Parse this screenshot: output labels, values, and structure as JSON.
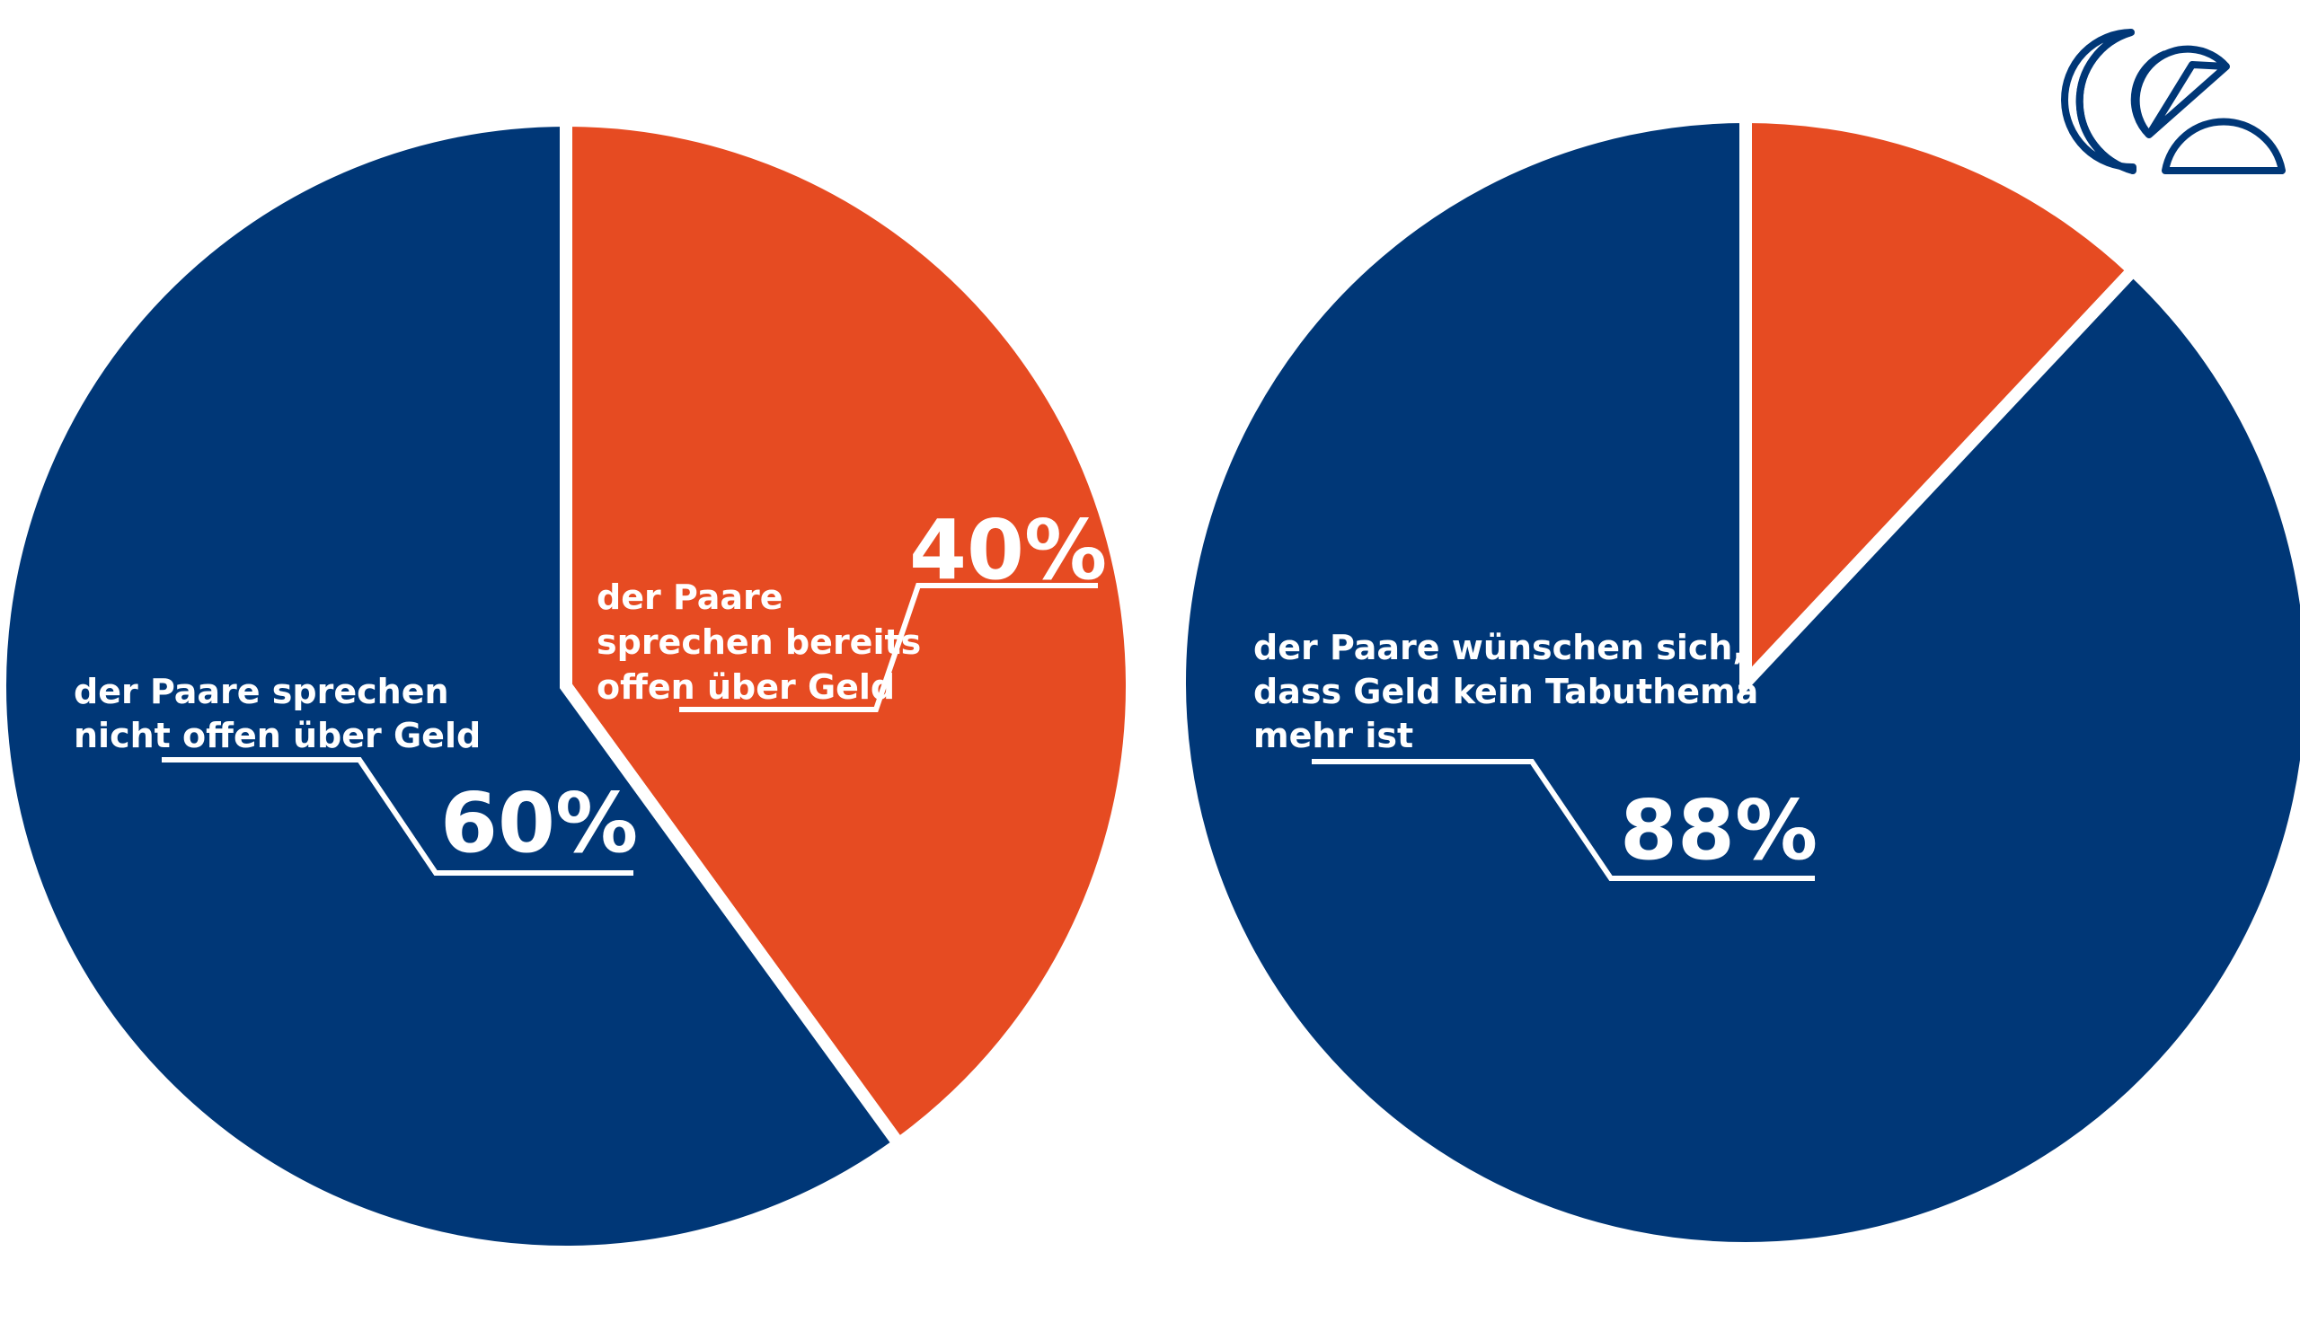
{
  "colors": {
    "blue": "#003777",
    "orange": "#e64b22",
    "white": "#ffffff"
  },
  "logo": {
    "icon": "brand-logo-icon"
  },
  "chart_data": [
    {
      "type": "pie",
      "slices": [
        {
          "label": "der Paare sprechen bereits offen über Geld",
          "value": 40,
          "value_label": "40%",
          "color": "#e64b22"
        },
        {
          "label": "der Paare sprechen nicht offen über Geld",
          "value": 60,
          "value_label": "60%",
          "color": "#003777"
        }
      ]
    },
    {
      "type": "pie",
      "slices": [
        {
          "label": "",
          "value": 12,
          "color": "#e64b22"
        },
        {
          "label": "der Paare wünschen sich, dass Geld kein Tabuthema mehr ist",
          "value": 88,
          "value_label": "88%",
          "color": "#003777"
        }
      ]
    }
  ],
  "annotations": {
    "left_orange": {
      "lines": [
        "der Paare",
        "sprechen bereits",
        "offen über Geld"
      ],
      "pct": "40%"
    },
    "left_blue": {
      "lines": [
        "der Paare sprechen",
        "nicht offen über Geld"
      ],
      "pct": "60%"
    },
    "right_blue": {
      "lines": [
        "der Paare wünschen sich,",
        "dass Geld kein Tabuthema",
        "mehr ist"
      ],
      "pct": "88%"
    }
  }
}
